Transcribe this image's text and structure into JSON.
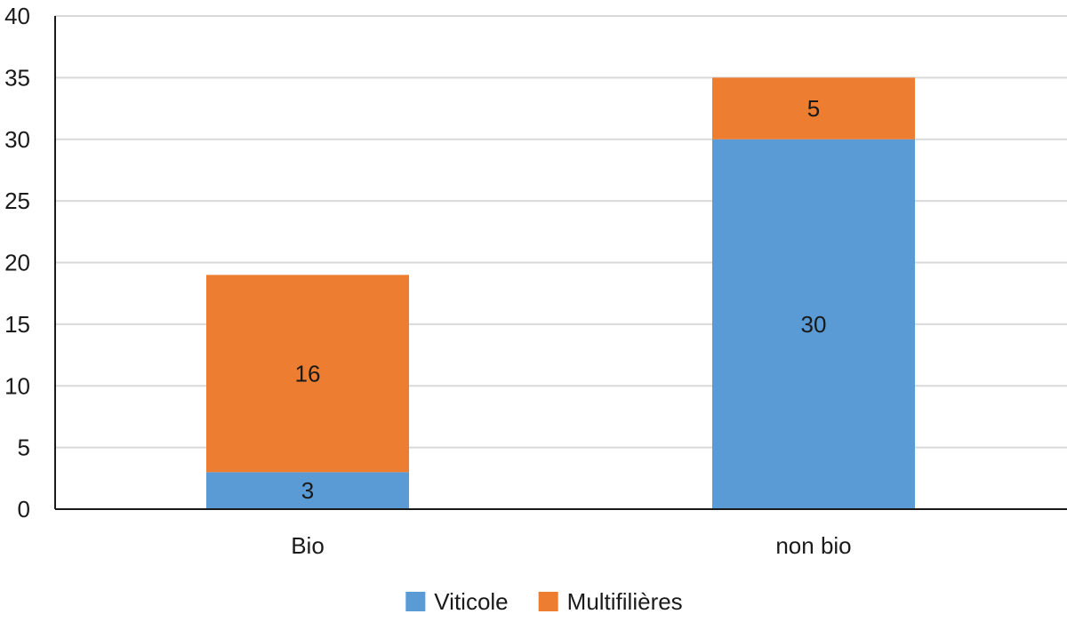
{
  "chart_data": {
    "type": "bar",
    "stacked": true,
    "categories": [
      "Bio",
      "non bio"
    ],
    "series": [
      {
        "name": "Viticole",
        "values": [
          3,
          30
        ],
        "color": "#5B9BD5"
      },
      {
        "name": "Multifilières",
        "values": [
          16,
          5
        ],
        "color": "#ED7D31"
      }
    ],
    "title": "",
    "xlabel": "",
    "ylabel": "",
    "ylim": [
      0,
      40
    ],
    "yticks": [
      0,
      5,
      10,
      15,
      20,
      25,
      30,
      35,
      40
    ],
    "grid": true,
    "data_labels": true,
    "legend_position": "bottom"
  }
}
